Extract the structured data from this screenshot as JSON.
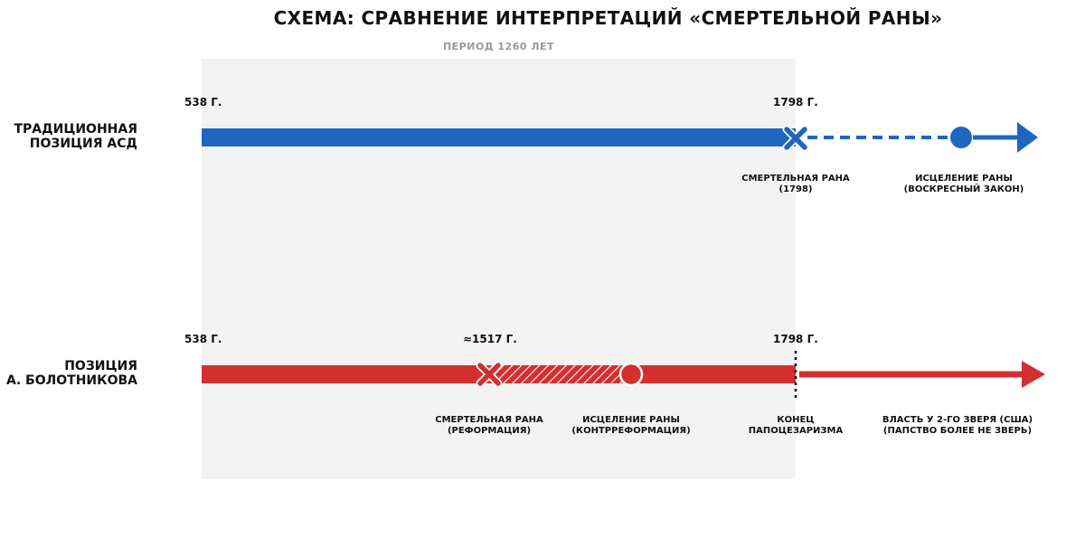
{
  "title": "СХЕМА: СРАВНЕНИЕ ИНТЕРПРЕТАЦИЙ «СМЕРТЕЛЬНОЙ РАНЫ»",
  "period_label": "ПЕРИОД 1260 ЛЕТ",
  "colors": {
    "traditional": "#1f66c1",
    "bolotnikov": "#d32f30",
    "period_bg": "#f3f3f3"
  },
  "traditional": {
    "label_line1": "ТРАДИЦИОННАЯ",
    "label_line2": "ПОЗИЦИЯ АСД",
    "start_date": "538 Г.",
    "wound_date": "1798 Г.",
    "wound_caption_line1": "СМЕРТЕЛЬНАЯ РАНА",
    "wound_caption_line2": "(1798)",
    "healing_caption_line1": "ИСЦЕЛЕНИЕ РАНЫ",
    "healing_caption_line2": "(ВОСКРЕСНЫЙ ЗАКОН)"
  },
  "bolotnikov": {
    "label_line1": "ПОЗИЦИЯ",
    "label_line2": "А. БОЛОТНИКОВА",
    "start_date": "538 Г.",
    "wound_date": "≈1517 Г.",
    "end_date": "1798 Г.",
    "wound_caption_line1": "СМЕРТЕЛЬНАЯ РАНА",
    "wound_caption_line2": "(РЕФОРМАЦИЯ)",
    "healing_caption_line1": "ИСЦЕЛЕНИЕ РАНЫ",
    "healing_caption_line2": "(КОНТРРЕФОРМАЦИЯ)",
    "end_caption_line1": "КОНЕЦ",
    "end_caption_line2": "ПАПОЦЕЗАРИЗМА",
    "after_caption_line1": "ВЛАСТЬ У 2-ГО ЗВЕРЯ (США)",
    "after_caption_line2": "(ПАПСТВО БОЛЕЕ НЕ ЗВЕРЬ)"
  }
}
